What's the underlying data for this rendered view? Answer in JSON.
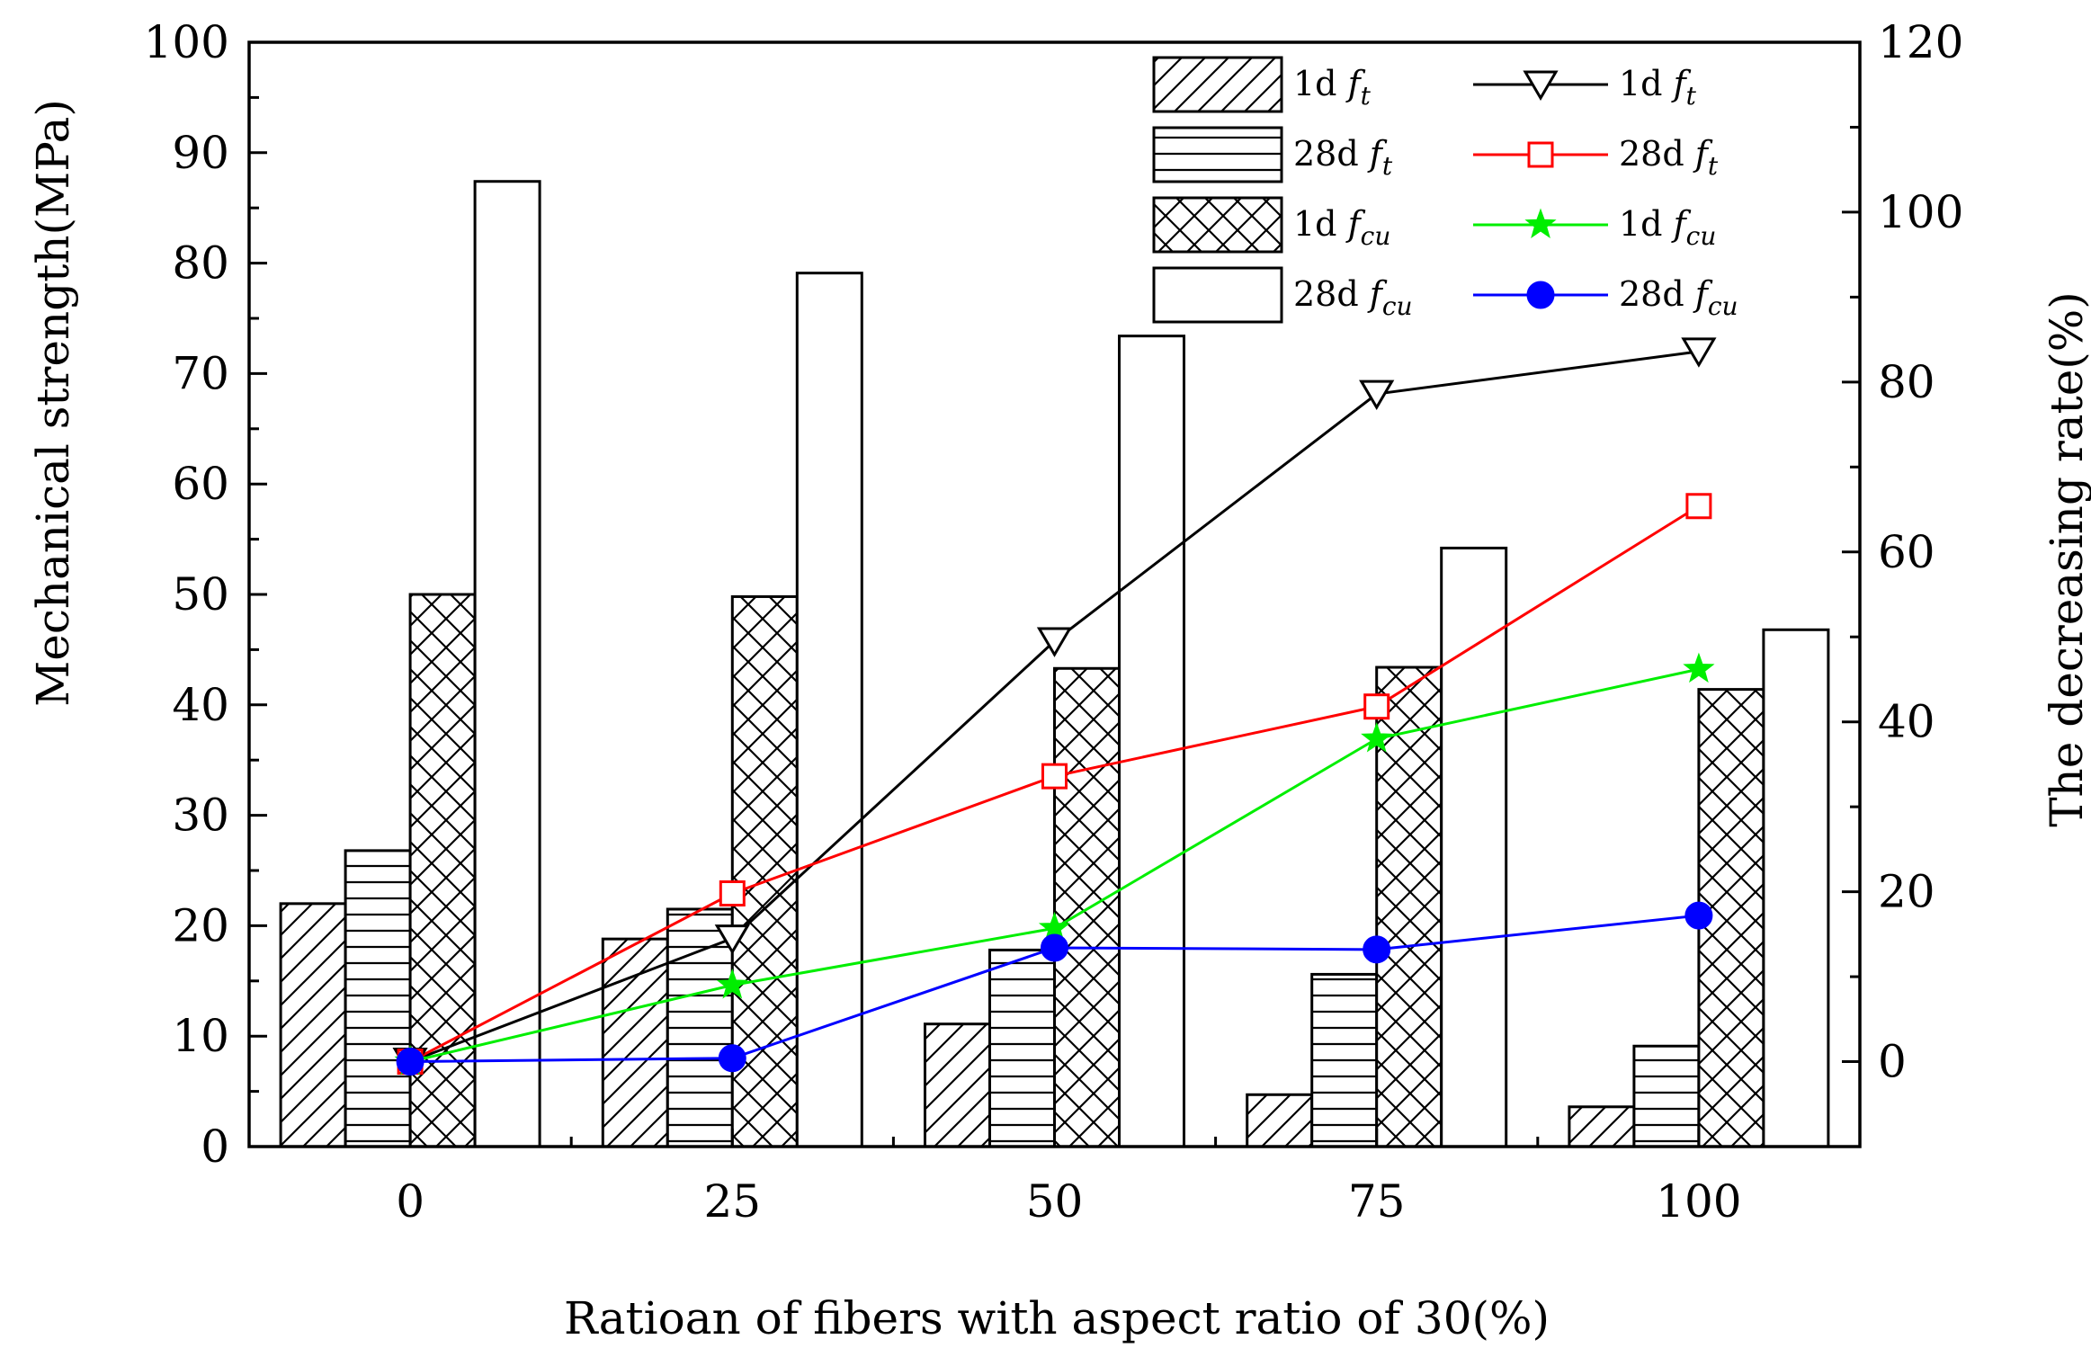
{
  "chart_data": {
    "type": "bar",
    "categories": [
      "0",
      "25",
      "50",
      "75",
      "100"
    ],
    "xlabel": "Ratioan of fibers with aspect ratio of 30(%)",
    "ylabel": "Mechanical strength(MPa)",
    "y2label": "The decreasing rate(%)",
    "ylim": [
      0,
      100
    ],
    "y2lim": [
      -10,
      120
    ],
    "yticks": [
      "0",
      "10",
      "20",
      "30",
      "40",
      "50",
      "60",
      "70",
      "80",
      "90",
      "100"
    ],
    "y2ticks": [
      "0",
      "20",
      "40",
      "60",
      "80",
      "100",
      "120"
    ],
    "legend_position": "top-right",
    "bar_series": [
      {
        "name": "1d f_t",
        "label_main": "1d",
        "label_sub": "t",
        "pattern": "diagonal-hatch",
        "values": [
          22.0,
          18.8,
          11.1,
          4.7,
          3.6
        ]
      },
      {
        "name": "28d f_t",
        "label_main": "28d",
        "label_sub": "t",
        "pattern": "horizontal-hatch",
        "values": [
          26.8,
          21.5,
          17.8,
          15.6,
          9.1
        ]
      },
      {
        "name": "1d f_cu",
        "label_main": "1d",
        "label_sub": "cu",
        "pattern": "cross-hatch",
        "values": [
          50.0,
          49.8,
          43.3,
          43.4,
          41.4
        ]
      },
      {
        "name": "28d f_cu",
        "label_main": "28d",
        "label_sub": "cu",
        "pattern": "empty",
        "values": [
          87.4,
          79.1,
          73.4,
          54.2,
          46.8
        ]
      }
    ],
    "line_series": [
      {
        "name": "1d f_t",
        "label_main": "1d",
        "label_sub": "t",
        "color": "#000000",
        "marker": "triangle-down",
        "values": [
          0,
          14.5,
          49.5,
          78.6,
          83.6
        ]
      },
      {
        "name": "28d f_t",
        "label_main": "28d",
        "label_sub": "t",
        "color": "#ff0000",
        "marker": "square-open",
        "values": [
          0,
          19.8,
          33.6,
          41.8,
          65.4
        ]
      },
      {
        "name": "1d f_cu",
        "label_main": "1d",
        "label_sub": "cu",
        "color": "#00ee00",
        "marker": "star",
        "values": [
          0,
          9.0,
          15.7,
          38.0,
          46.2
        ]
      },
      {
        "name": "28d f_cu",
        "label_main": "28d",
        "label_sub": "cu",
        "color": "#0000ff",
        "marker": "circle-filled",
        "values": [
          0,
          0.4,
          13.4,
          13.2,
          17.2
        ]
      }
    ]
  }
}
